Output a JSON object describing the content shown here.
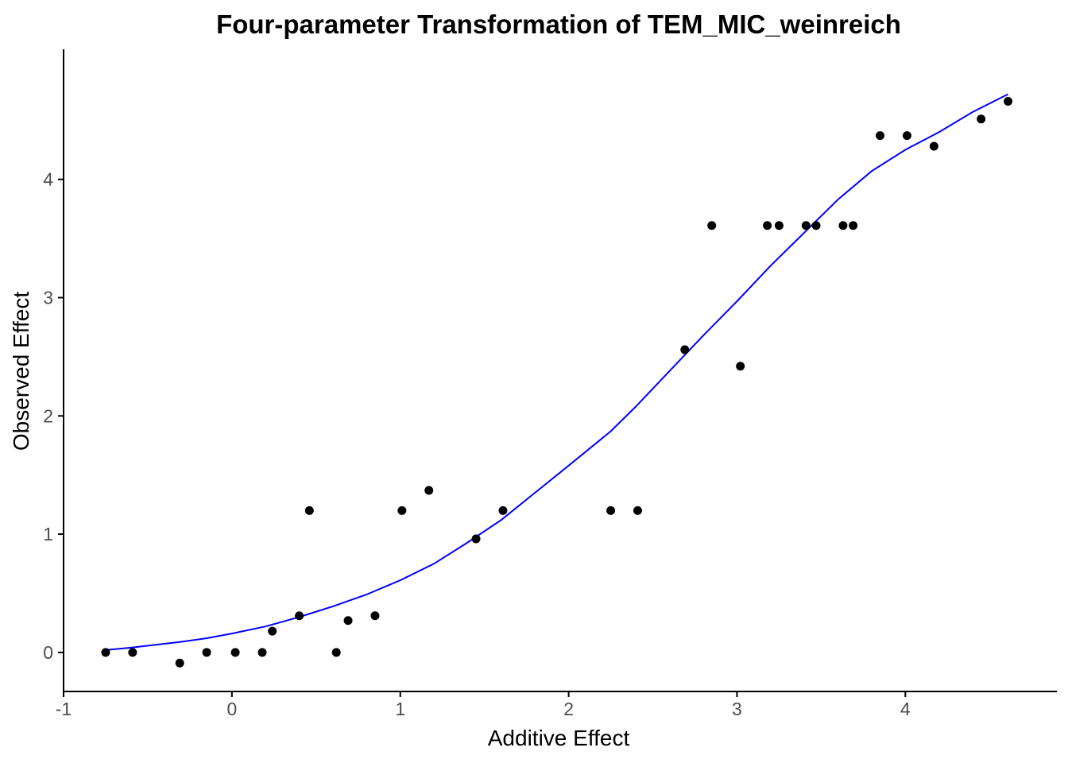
{
  "chart_data": {
    "type": "scatter",
    "title": "Four-parameter Transformation of TEM_MIC_weinreich",
    "xlabel": "Additive Effect",
    "ylabel": "Observed Effect",
    "xlim": [
      -1,
      4.9
    ],
    "ylim": [
      -0.33,
      5.1
    ],
    "grid": false,
    "legend": "none",
    "x_ticks": [
      -1,
      0,
      1,
      2,
      3,
      4
    ],
    "x_tick_labels": [
      "-1",
      "0",
      "1",
      "2",
      "3",
      "4"
    ],
    "y_ticks": [
      0,
      1,
      2,
      3,
      4
    ],
    "y_tick_labels": [
      "0",
      "1",
      "2",
      "3",
      "4"
    ],
    "colors": {
      "points": "#000000",
      "fit_line": "#0000ff",
      "axis": "#000000",
      "tick_text": "#4d4d4d"
    },
    "series": [
      {
        "type": "scatter",
        "x": [
          -0.75,
          -0.59,
          -0.31,
          -0.15,
          0.02,
          0.18,
          0.24,
          0.4,
          0.46,
          0.62,
          0.69,
          0.85,
          1.01,
          1.17,
          1.45,
          1.61,
          2.25,
          2.41,
          2.69,
          2.85,
          3.02,
          3.18,
          3.25,
          3.41,
          3.47,
          3.63,
          3.69,
          3.85,
          4.01,
          4.17,
          4.45,
          4.61
        ],
        "y": [
          0.0,
          0.0,
          -0.09,
          0.0,
          0.0,
          0.0,
          0.18,
          0.31,
          1.2,
          0.0,
          0.27,
          0.31,
          1.2,
          1.37,
          0.96,
          1.2,
          1.2,
          1.2,
          2.56,
          3.61,
          2.42,
          3.61,
          3.61,
          3.61,
          3.61,
          3.61,
          3.61,
          4.37,
          4.37,
          4.28,
          4.51,
          4.66
        ]
      },
      {
        "type": "line",
        "x": [
          -0.75,
          -0.6,
          -0.3,
          -0.15,
          0.0,
          0.2,
          0.4,
          0.6,
          0.8,
          1.0,
          1.2,
          1.4,
          1.6,
          1.8,
          2.0,
          2.25,
          2.4,
          2.6,
          2.8,
          3.0,
          3.2,
          3.4,
          3.6,
          3.8,
          4.0,
          4.2,
          4.4,
          4.61
        ],
        "y": [
          0.02,
          0.04,
          0.09,
          0.12,
          0.16,
          0.22,
          0.3,
          0.39,
          0.49,
          0.61,
          0.75,
          0.93,
          1.12,
          1.35,
          1.58,
          1.87,
          2.08,
          2.38,
          2.68,
          2.97,
          3.27,
          3.55,
          3.83,
          4.07,
          4.25,
          4.4,
          4.57,
          4.72
        ]
      }
    ]
  }
}
